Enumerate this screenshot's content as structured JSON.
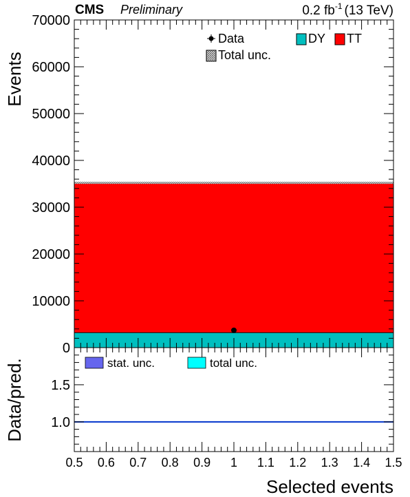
{
  "header": {
    "experiment": "CMS",
    "status": "Preliminary",
    "lumi_value": "0.2 fb",
    "lumi_exp": "-1",
    "lumi_energy": "(13 TeV)"
  },
  "upper_panel": {
    "ylabel": "Events",
    "yticks": [
      "0",
      "10000",
      "20000",
      "30000",
      "40000",
      "50000",
      "60000",
      "70000"
    ],
    "legend": {
      "data": "Data",
      "dy": "DY",
      "tt": "TT",
      "total_unc": "Total unc."
    }
  },
  "lower_panel": {
    "ylabel": "Data/pred.",
    "yticks": [
      "1.0",
      "1.5"
    ],
    "legend": {
      "stat": "stat. unc.",
      "total": "total unc."
    }
  },
  "xaxis": {
    "title": "Selected events",
    "ticks": [
      "0.5",
      "0.6",
      "0.7",
      "0.8",
      "0.9",
      "1",
      "1.1",
      "1.2",
      "1.3",
      "1.4",
      "1.5"
    ]
  },
  "chart_data": {
    "type": "bar",
    "title": "",
    "xlabel": "Selected events",
    "ylabel": "Events",
    "xlim": [
      0.5,
      1.5
    ],
    "ylim": [
      0,
      70000
    ],
    "bin": [
      0.5,
      1.5
    ],
    "stack": [
      {
        "name": "DY",
        "value": 3200,
        "color": "#00bfbf"
      },
      {
        "name": "TT",
        "value": 32000,
        "color": "#ff0000"
      }
    ],
    "data": {
      "name": "Data",
      "x": 1.0,
      "y": 3700
    },
    "ratio": {
      "ylabel": "Data/pred.",
      "ylim": [
        0.6,
        2.0
      ],
      "reference": 1.0,
      "reference_color": "#0033cc"
    },
    "legend_colors": {
      "stat_unc": "#6666ee",
      "total_unc": "#00ffff"
    }
  }
}
